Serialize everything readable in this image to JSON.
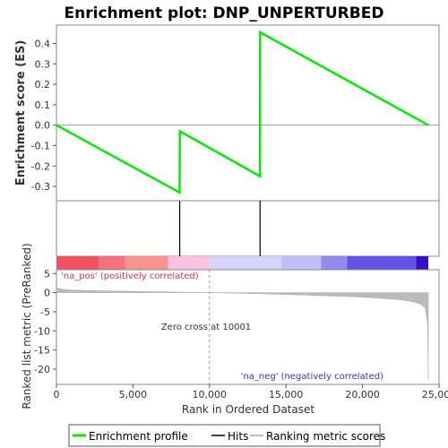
{
  "chart_data": {
    "type": "line",
    "title": "Enrichment plot: DNP_UNPERTURBED",
    "xlabel": "Rank in Ordered Dataset",
    "ylabel_top": "Enrichment score (ES)",
    "ylabel_bottom": "Ranked list metric (PreRanked)",
    "xlim": [
      0,
      25000
    ],
    "x_ticks": [
      0,
      5000,
      10000,
      15000,
      20000,
      25000
    ],
    "x_tick_labels": [
      "0",
      "5,000",
      "10,000",
      "15,000",
      "20,000",
      "25,000"
    ],
    "es_ylim": [
      -0.37,
      0.49
    ],
    "es_ticks": [
      -0.3,
      -0.2,
      -0.1,
      0.0,
      0.1,
      0.2,
      0.3,
      0.4
    ],
    "es_tick_labels": [
      "-0.3",
      "-0.2",
      "-0.1",
      "0.0",
      "0.1",
      "0.2",
      "0.3",
      "0.4"
    ],
    "enrichment_profile": {
      "x": [
        0,
        8050,
        8060,
        13300,
        13310,
        24300
      ],
      "y": [
        0.0,
        -0.33,
        -0.03,
        -0.25,
        0.455,
        0.0
      ]
    },
    "hits": [
      8055,
      13305
    ],
    "heat_bands": [
      {
        "from": 0,
        "to": 2800,
        "color": "#f0525f"
      },
      {
        "from": 2800,
        "to": 4500,
        "color": "#f4727c"
      },
      {
        "from": 4500,
        "to": 7300,
        "color": "#f7938f"
      },
      {
        "from": 7300,
        "to": 10000,
        "color": "#fac2e2"
      },
      {
        "from": 10000,
        "to": 14700,
        "color": "#d8d4f9"
      },
      {
        "from": 14700,
        "to": 17300,
        "color": "#c4bcf6"
      },
      {
        "from": 17300,
        "to": 19000,
        "color": "#9389ef"
      },
      {
        "from": 19000,
        "to": 23500,
        "color": "#6651e6"
      },
      {
        "from": 23500,
        "to": 24300,
        "color": "#3410c8"
      }
    ],
    "metric_ylim": [
      -24,
      6
    ],
    "metric_ticks": [
      5,
      0,
      -5,
      -10,
      -15,
      -20
    ],
    "metric_tick_labels": [
      "5",
      "0",
      "-5",
      "-10",
      "-15",
      "-20"
    ],
    "ranking_metric": {
      "x": [
        0,
        500,
        2000,
        5000,
        8000,
        10000,
        13000,
        16000,
        19000,
        21000,
        22500,
        23300,
        23800,
        24100,
        24250,
        24300
      ],
      "y": [
        1.2,
        0.8,
        0.55,
        0.35,
        0.15,
        0.0,
        -0.25,
        -0.6,
        -1.0,
        -1.4,
        -1.9,
        -2.4,
        -3.0,
        -4.0,
        -8.0,
        -23.0
      ]
    },
    "zero_cross_x": 10000,
    "annotations": {
      "pos": "'na_pos' (positively correlated)",
      "neg": "'na_neg' (negatively correlated)",
      "zero_cross": "Zero cross at 10001"
    },
    "colors": {
      "profile": "#00ee00",
      "hits": "#000000",
      "metric_fill": "#bbbbbb",
      "pos_text": "#e8303c",
      "neg_text": "#3333cc",
      "zero_line": "#999999"
    },
    "legend": [
      {
        "name": "Enrichment profile",
        "color": "#00ee00"
      },
      {
        "name": "Hits",
        "color": "#000000"
      },
      {
        "name": "Ranking metric scores",
        "color": "#bbbbbb"
      }
    ]
  }
}
